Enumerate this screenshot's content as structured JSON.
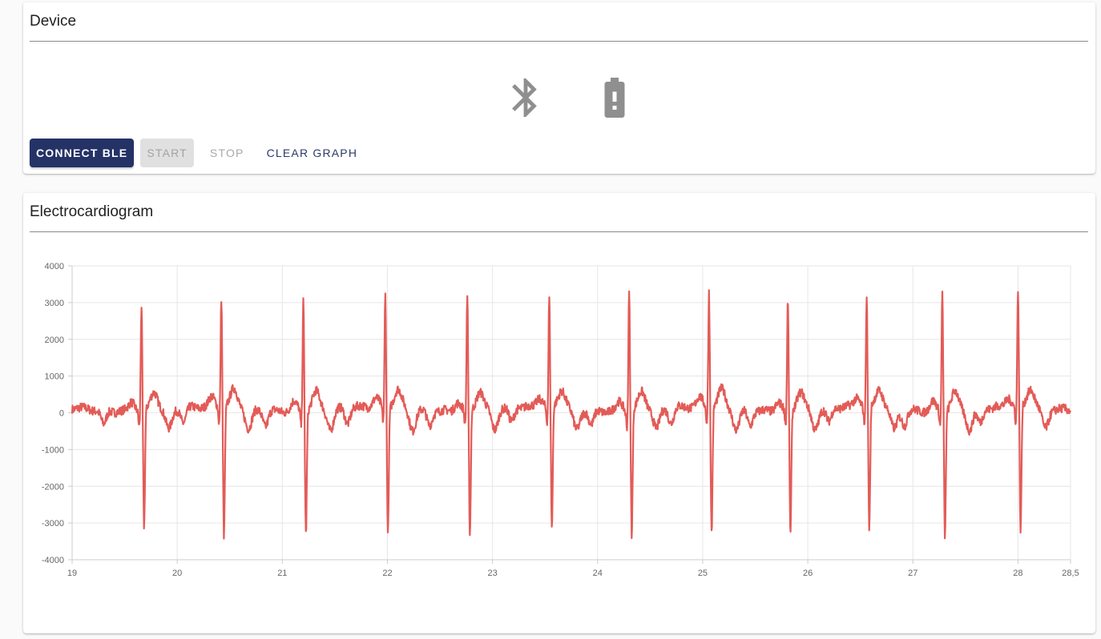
{
  "device": {
    "title": "Device",
    "icons": [
      "bluetooth-icon",
      "battery-alert-icon"
    ],
    "buttons": {
      "connect_label": "CONNECT BLE",
      "start_label": "START",
      "stop_label": "STOP",
      "clear_label": "CLEAR GRAPH"
    }
  },
  "ecg": {
    "title": "Electrocardiogram"
  },
  "colors": {
    "primary": "#243266",
    "trace": "#e35b57",
    "icon": "#8f8f8f"
  },
  "chart_data": {
    "type": "line",
    "title": "",
    "xlabel": "",
    "ylabel": "",
    "xlim": [
      19,
      28.5
    ],
    "ylim": [
      -4000,
      4000
    ],
    "x_ticks": [
      "19",
      "20",
      "21",
      "22",
      "23",
      "24",
      "25",
      "26",
      "27",
      "28",
      "28,5"
    ],
    "y_ticks": [
      "4000",
      "3000",
      "2000",
      "1000",
      "0",
      "-1000",
      "-2000",
      "-3000",
      "-4000"
    ],
    "grid": true,
    "legend": "none",
    "series": [
      {
        "beats_x": [
          19.66,
          20.42,
          21.2,
          21.98,
          22.76,
          23.54,
          24.3,
          25.06,
          25.81,
          26.56,
          27.28,
          28.0
        ],
        "r_peak": [
          3000,
          3150,
          3150,
          3200,
          3250,
          3100,
          3400,
          3300,
          3100,
          3150,
          3400,
          3350
        ],
        "s_trough": [
          -3100,
          -3400,
          -3250,
          -3350,
          -3300,
          -3250,
          -3300,
          -3300,
          -3250,
          -3250,
          -3300,
          -3300
        ],
        "baseline": 100
      }
    ]
  }
}
